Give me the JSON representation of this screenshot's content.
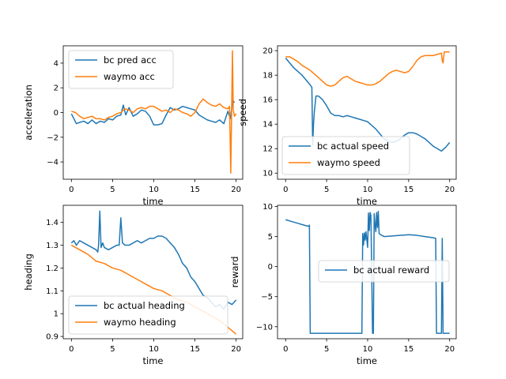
{
  "chart_data": [
    {
      "type": "line",
      "xlabel": "time",
      "ylabel": "acceleration",
      "xlim": [
        -0.99,
        20.8
      ],
      "ylim": [
        -5.4,
        5.4
      ],
      "xticks": [
        0,
        5,
        10,
        15,
        20
      ],
      "yticks": [
        -4,
        -2,
        0,
        2,
        4
      ],
      "legend_position": "upper-left",
      "series": [
        {
          "name": "bc pred acc",
          "color": "#1f77b4",
          "x": [
            0,
            0.3,
            0.6,
            1,
            1.5,
            2,
            2.5,
            3,
            3.5,
            4,
            4.5,
            5,
            5.5,
            6,
            6.3,
            6.6,
            7,
            7.5,
            8,
            8.5,
            9,
            9.5,
            10,
            10.5,
            11,
            11.5,
            12,
            12.5,
            13,
            13.5,
            14,
            14.5,
            15,
            15.5,
            16,
            16.5,
            17,
            17.5,
            18,
            18.5,
            19,
            19.3,
            19.6,
            19.8
          ],
          "y": [
            -0.1,
            -0.5,
            -0.9,
            -0.8,
            -0.7,
            -0.9,
            -0.6,
            -0.9,
            -0.7,
            -0.8,
            -0.5,
            -0.6,
            -0.3,
            -0.2,
            0.6,
            -0.2,
            0.4,
            -0.3,
            -0.1,
            0.2,
            0.1,
            -0.3,
            -1.0,
            -1.0,
            -0.9,
            -0.2,
            0.4,
            0.2,
            0.3,
            0.5,
            0.4,
            0.3,
            0.2,
            -0.2,
            -0.4,
            -0.6,
            -0.7,
            -0.8,
            -0.6,
            -0.9,
            0.1,
            -0.5,
            1.0,
            0.8
          ]
        },
        {
          "name": "waymo acc",
          "color": "#ff7f0e",
          "x": [
            0,
            0.5,
            1,
            1.5,
            2,
            2.5,
            3,
            3.5,
            4,
            4.5,
            5,
            5.5,
            6,
            6.5,
            7,
            7.5,
            8,
            8.5,
            9,
            9.5,
            10,
            10.5,
            11,
            11.5,
            12,
            12.5,
            13,
            13.5,
            14,
            14.5,
            15,
            15.5,
            16,
            16.5,
            17,
            17.5,
            18,
            18.5,
            19,
            19.2,
            19.35,
            19.45,
            19.55,
            19.65,
            19.8,
            20
          ],
          "y": [
            0.1,
            0.0,
            -0.3,
            -0.5,
            -0.4,
            -0.3,
            -0.5,
            -0.5,
            -0.6,
            -0.4,
            -0.3,
            -0.1,
            0.0,
            0.3,
            0.2,
            0.0,
            0.3,
            0.4,
            0.3,
            0.5,
            0.5,
            0.3,
            0.1,
            0.2,
            0.0,
            0.3,
            0.2,
            0.0,
            -0.1,
            -0.3,
            0.0,
            0.7,
            1.1,
            0.8,
            0.6,
            0.5,
            0.7,
            0.4,
            0.3,
            0.5,
            -4.9,
            0.0,
            5.0,
            0.2,
            -0.3,
            -0.1
          ]
        }
      ]
    },
    {
      "type": "line",
      "xlabel": "time",
      "ylabel": "speed",
      "xlim": [
        -0.99,
        20.8
      ],
      "ylim": [
        9.5,
        20.4
      ],
      "xticks": [
        0,
        5,
        10,
        15,
        20
      ],
      "yticks": [
        10,
        12,
        14,
        16,
        18,
        20
      ],
      "legend_position": "lower-left",
      "series": [
        {
          "name": "bc actual speed",
          "color": "#1f77b4",
          "x": [
            0,
            0.5,
            1,
            1.5,
            2,
            2.5,
            3,
            3.2,
            3.3,
            3.4,
            3.5,
            3.7,
            4,
            4.5,
            5,
            5.5,
            6,
            6.5,
            7,
            7.5,
            8,
            8.5,
            9,
            9.5,
            10,
            10.5,
            11,
            11.5,
            12,
            12.5,
            13,
            13.5,
            14,
            14.5,
            15,
            15.5,
            16,
            16.5,
            17,
            17.5,
            18,
            18.5,
            19,
            19.5,
            20
          ],
          "y": [
            19.4,
            19.0,
            18.6,
            18.3,
            18.0,
            17.6,
            17.2,
            17.0,
            12.3,
            14.0,
            15.0,
            16.3,
            16.3,
            16.0,
            15.5,
            14.9,
            14.7,
            14.7,
            14.6,
            14.7,
            14.6,
            14.5,
            14.4,
            14.3,
            14.2,
            13.9,
            13.6,
            13.2,
            12.8,
            12.6,
            12.5,
            12.6,
            12.8,
            13.1,
            13.3,
            13.3,
            13.2,
            13.0,
            12.8,
            12.5,
            12.2,
            12.0,
            11.8,
            12.1,
            12.5
          ]
        },
        {
          "name": "waymo speed",
          "color": "#ff7f0e",
          "x": [
            0,
            0.5,
            1,
            1.5,
            2,
            2.5,
            3,
            3.5,
            4,
            4.5,
            5,
            5.5,
            6,
            6.5,
            7,
            7.5,
            8,
            8.5,
            9,
            9.5,
            10,
            10.5,
            11,
            11.5,
            12,
            12.5,
            13,
            13.5,
            14,
            14.5,
            15,
            15.5,
            16,
            16.5,
            17,
            17.5,
            18,
            18.5,
            19,
            19.1,
            19.2,
            19.35,
            19.5,
            20
          ],
          "y": [
            19.5,
            19.5,
            19.3,
            19.1,
            18.8,
            18.6,
            18.4,
            18.1,
            17.8,
            17.5,
            17.2,
            17.1,
            17.2,
            17.5,
            17.8,
            17.9,
            17.7,
            17.5,
            17.4,
            17.3,
            17.2,
            17.2,
            17.3,
            17.5,
            17.8,
            18.1,
            18.3,
            18.4,
            18.3,
            18.2,
            18.3,
            18.7,
            19.2,
            19.5,
            19.6,
            19.6,
            19.6,
            19.7,
            19.8,
            19.2,
            19.0,
            19.9,
            19.9,
            19.9
          ]
        }
      ]
    },
    {
      "type": "line",
      "xlabel": "time",
      "ylabel": "heading",
      "xlim": [
        -0.99,
        20.8
      ],
      "ylim": [
        0.89,
        1.475
      ],
      "xticks": [
        0,
        5,
        10,
        15,
        20
      ],
      "yticks": [
        0.9,
        1.0,
        1.1,
        1.2,
        1.3,
        1.4
      ],
      "legend_position": "lower-left",
      "series": [
        {
          "name": "bc actual heading",
          "color": "#1f77b4",
          "x": [
            0,
            0.3,
            0.6,
            1,
            1.5,
            2,
            2.5,
            3,
            3.2,
            3.3,
            3.45,
            3.6,
            3.8,
            4,
            4.5,
            5,
            5.5,
            5.8,
            6,
            6.2,
            6.5,
            7,
            7.5,
            8,
            8.5,
            9,
            9.5,
            10,
            10.5,
            11,
            11.5,
            12,
            12.5,
            13,
            13.5,
            14,
            14.5,
            15,
            15.5,
            16,
            16.5,
            17,
            17.5,
            18,
            18.5,
            19,
            19.5,
            20
          ],
          "y": [
            1.31,
            1.32,
            1.3,
            1.32,
            1.31,
            1.3,
            1.29,
            1.28,
            1.27,
            1.3,
            1.45,
            1.29,
            1.31,
            1.29,
            1.28,
            1.29,
            1.3,
            1.3,
            1.42,
            1.31,
            1.3,
            1.3,
            1.31,
            1.32,
            1.31,
            1.32,
            1.33,
            1.33,
            1.34,
            1.34,
            1.33,
            1.31,
            1.29,
            1.26,
            1.22,
            1.2,
            1.16,
            1.14,
            1.11,
            1.08,
            1.07,
            1.05,
            1.03,
            1.04,
            1.02,
            1.05,
            1.04,
            1.06
          ]
        },
        {
          "name": "waymo heading",
          "color": "#ff7f0e",
          "x": [
            0,
            1,
            2,
            3,
            4,
            5,
            6,
            7,
            8,
            9,
            10,
            11,
            12,
            13,
            14,
            15,
            16,
            17,
            18,
            19,
            20
          ],
          "y": [
            1.3,
            1.28,
            1.26,
            1.23,
            1.22,
            1.2,
            1.19,
            1.17,
            1.15,
            1.13,
            1.11,
            1.1,
            1.08,
            1.06,
            1.05,
            1.03,
            1.01,
            0.99,
            0.97,
            0.94,
            0.91
          ]
        }
      ]
    },
    {
      "type": "line",
      "xlabel": "time",
      "ylabel": "reward",
      "xlim": [
        -0.99,
        20.8
      ],
      "ylim": [
        -12.0,
        10.2
      ],
      "xticks": [
        0,
        5,
        10,
        15,
        20
      ],
      "yticks": [
        -10,
        -5,
        0,
        5,
        10
      ],
      "legend_position": "center-right",
      "series": [
        {
          "name": "bc actual reward",
          "color": "#1f77b4",
          "x": [
            0,
            0.5,
            1,
            1.5,
            2,
            2.5,
            2.8,
            2.9,
            3.0,
            3.1,
            4,
            5,
            6,
            7,
            8,
            9,
            9.3,
            9.4,
            9.5,
            9.6,
            9.7,
            9.8,
            10.0,
            10.1,
            10.2,
            10.3,
            10.4,
            10.6,
            10.7,
            10.8,
            10.9,
            11.0,
            11.1,
            11.2,
            11.3,
            11.4,
            11.6,
            12,
            13,
            14,
            15,
            16,
            17,
            18,
            18.3,
            18.4,
            18.6,
            18.7,
            19.0,
            19.1,
            19.2,
            19.3,
            19.5,
            20
          ],
          "y": [
            7.8,
            7.6,
            7.4,
            7.2,
            7.0,
            6.8,
            6.7,
            6.9,
            -11.1,
            -11.1,
            -11.1,
            -11.1,
            -11.1,
            -11.1,
            -11.1,
            -11.1,
            -11.1,
            5.5,
            3.6,
            5.6,
            4.4,
            5.8,
            3.2,
            8.9,
            6.0,
            9.0,
            8.5,
            -11.1,
            -11.1,
            8.8,
            7.0,
            5.8,
            9.0,
            6.5,
            9.2,
            5.5,
            5.3,
            5.0,
            5.1,
            5.2,
            5.3,
            5.2,
            5.0,
            4.8,
            4.7,
            -11.1,
            -11.1,
            -11.1,
            -11.1,
            4.7,
            -11.1,
            -11.1,
            -11.1,
            -11.1
          ]
        }
      ]
    }
  ]
}
